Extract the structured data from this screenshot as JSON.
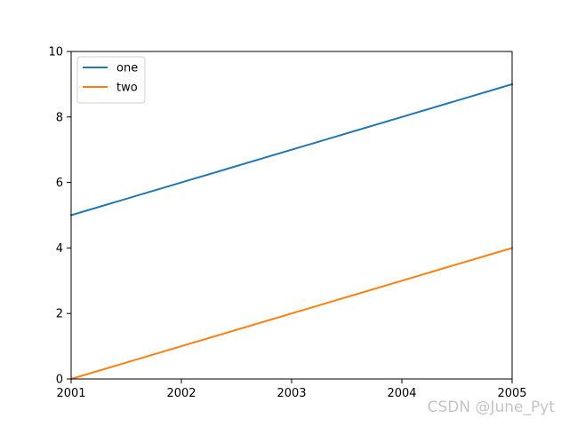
{
  "chart_data": {
    "type": "line",
    "title": "",
    "xlabel": "",
    "ylabel": "",
    "x": [
      2001,
      2002,
      2003,
      2004,
      2005
    ],
    "xticks": [
      "2001",
      "2002",
      "2003",
      "2004",
      "2005"
    ],
    "yticks": [
      "0",
      "2",
      "4",
      "6",
      "8",
      "10"
    ],
    "xlim": [
      2001,
      2005
    ],
    "ylim": [
      0,
      10
    ],
    "grid": false,
    "legend_position": "upper-left",
    "series": [
      {
        "name": "one",
        "color": "#1f77b4",
        "values": [
          5,
          6,
          7,
          8,
          9
        ]
      },
      {
        "name": "two",
        "color": "#ff7f0e",
        "values": [
          0,
          1,
          2,
          3,
          4
        ]
      }
    ]
  },
  "watermark": "CSDN @June_Pyt"
}
